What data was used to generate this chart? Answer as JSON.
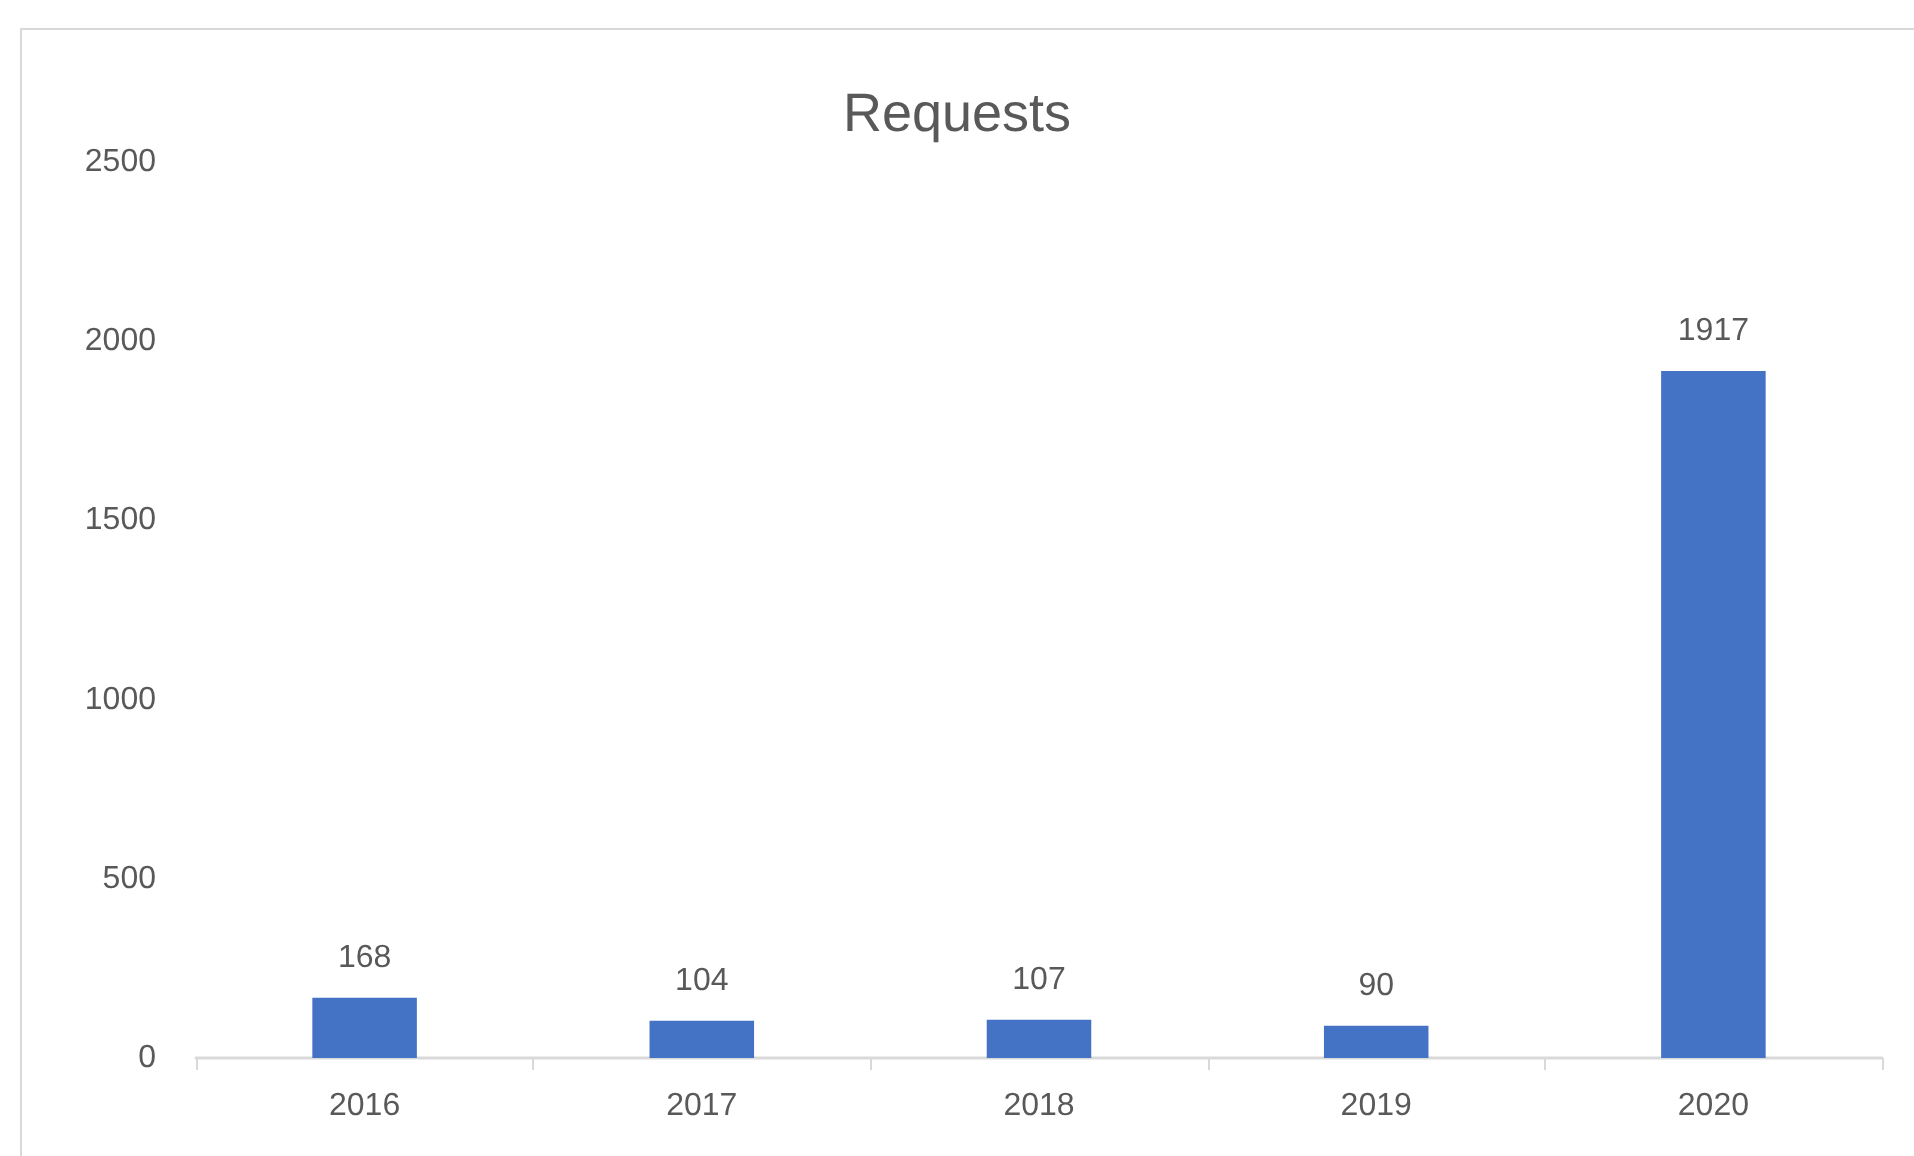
{
  "chart_data": {
    "type": "bar",
    "title": "Requests",
    "categories": [
      "2016",
      "2017",
      "2018",
      "2019",
      "2020"
    ],
    "values": [
      168,
      104,
      107,
      90,
      1917
    ],
    "color": "#4472c4",
    "ylim": [
      0,
      2500
    ],
    "yticks": [
      0,
      500,
      1000,
      1500,
      2000,
      2500
    ],
    "grid": false,
    "data_labels": true
  }
}
